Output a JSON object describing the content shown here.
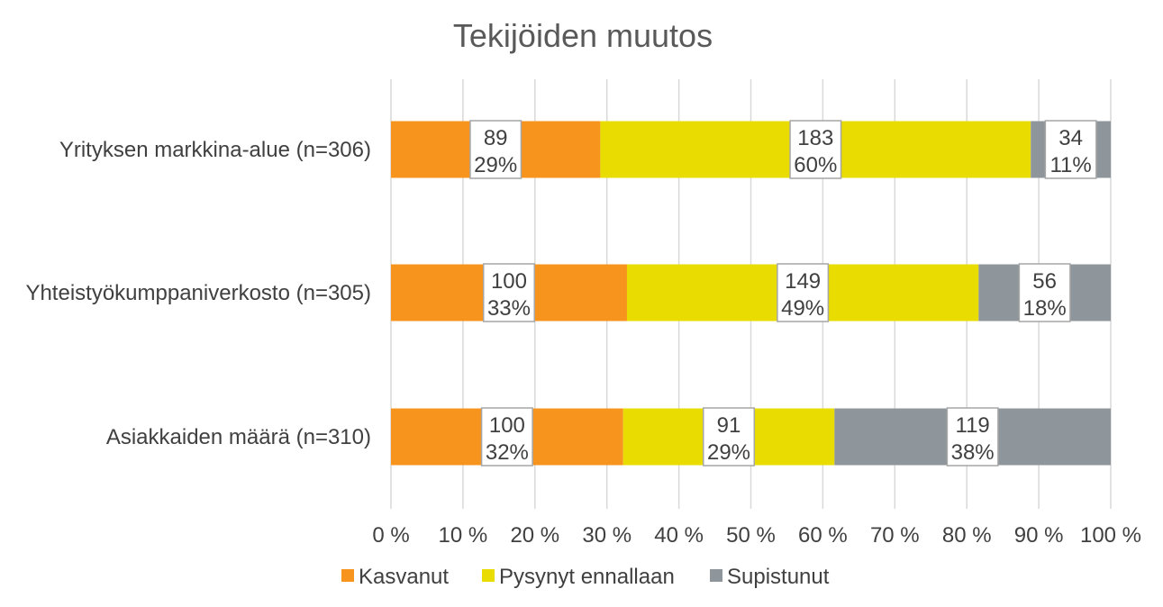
{
  "chart_data": {
    "type": "bar",
    "orientation": "horizontal",
    "stacked": "percent",
    "title": "Tekijöiden muutos",
    "categories": [
      "Yrityksen markkina-alue (n=306)",
      "Yhteistyökumppaniverkosto (n=305)",
      "Asiakkaiden määrä (n=310)"
    ],
    "series": [
      {
        "name": "Kasvanut",
        "color": "#f7941d",
        "counts": [
          89,
          100,
          100
        ],
        "percent_labels": [
          "29%",
          "33%",
          "32%"
        ],
        "values": [
          29,
          33,
          32
        ]
      },
      {
        "name": "Pysynyt ennallaan",
        "color": "#e8dc00",
        "counts": [
          183,
          149,
          91
        ],
        "percent_labels": [
          "60%",
          "49%",
          "29%"
        ],
        "values": [
          60,
          49,
          29
        ]
      },
      {
        "name": "Supistunut",
        "color": "#8f969b",
        "counts": [
          34,
          56,
          119
        ],
        "percent_labels": [
          "11%",
          "18%",
          "38%"
        ],
        "values": [
          11,
          18,
          38
        ]
      }
    ],
    "xlim": [
      0,
      100
    ],
    "x_ticks": [
      "0 %",
      "10 %",
      "20 %",
      "30 %",
      "40 %",
      "50 %",
      "60 %",
      "70 %",
      "80 %",
      "90 %",
      "100 %"
    ],
    "grid": true,
    "legend_position": "bottom"
  }
}
